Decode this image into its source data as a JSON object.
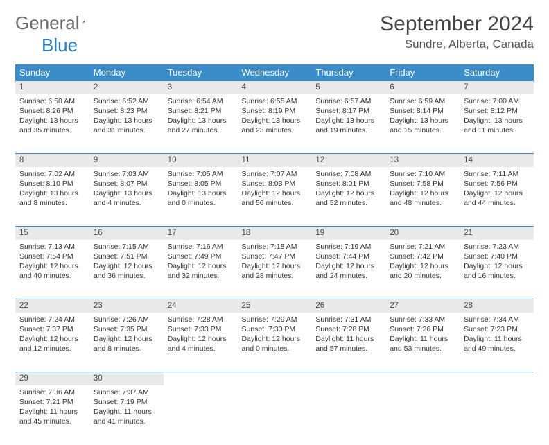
{
  "logo": {
    "part1": "General",
    "part2": "Blue"
  },
  "title": "September 2024",
  "location": "Sundre, Alberta, Canada",
  "colors": {
    "header_bg": "#3b8dc9",
    "daynum_bg": "#e9e9e9",
    "border": "#3b8dc9",
    "text": "#333333",
    "title_text": "#444444",
    "logo_gray": "#6a6a6a",
    "logo_blue": "#2a7ec0",
    "background": "#ffffff"
  },
  "typography": {
    "title_fontsize": 30,
    "location_fontsize": 17,
    "header_fontsize": 13,
    "daynum_fontsize": 11.5,
    "body_fontsize": 10.5,
    "font_family": "Arial"
  },
  "day_headers": [
    "Sunday",
    "Monday",
    "Tuesday",
    "Wednesday",
    "Thursday",
    "Friday",
    "Saturday"
  ],
  "weeks": [
    [
      {
        "n": "1",
        "sr": "6:50 AM",
        "ss": "8:26 PM",
        "dl": "13 hours and 35 minutes"
      },
      {
        "n": "2",
        "sr": "6:52 AM",
        "ss": "8:23 PM",
        "dl": "13 hours and 31 minutes"
      },
      {
        "n": "3",
        "sr": "6:54 AM",
        "ss": "8:21 PM",
        "dl": "13 hours and 27 minutes"
      },
      {
        "n": "4",
        "sr": "6:55 AM",
        "ss": "8:19 PM",
        "dl": "13 hours and 23 minutes"
      },
      {
        "n": "5",
        "sr": "6:57 AM",
        "ss": "8:17 PM",
        "dl": "13 hours and 19 minutes"
      },
      {
        "n": "6",
        "sr": "6:59 AM",
        "ss": "8:14 PM",
        "dl": "13 hours and 15 minutes"
      },
      {
        "n": "7",
        "sr": "7:00 AM",
        "ss": "8:12 PM",
        "dl": "13 hours and 11 minutes"
      }
    ],
    [
      {
        "n": "8",
        "sr": "7:02 AM",
        "ss": "8:10 PM",
        "dl": "13 hours and 8 minutes"
      },
      {
        "n": "9",
        "sr": "7:03 AM",
        "ss": "8:07 PM",
        "dl": "13 hours and 4 minutes"
      },
      {
        "n": "10",
        "sr": "7:05 AM",
        "ss": "8:05 PM",
        "dl": "13 hours and 0 minutes"
      },
      {
        "n": "11",
        "sr": "7:07 AM",
        "ss": "8:03 PM",
        "dl": "12 hours and 56 minutes"
      },
      {
        "n": "12",
        "sr": "7:08 AM",
        "ss": "8:01 PM",
        "dl": "12 hours and 52 minutes"
      },
      {
        "n": "13",
        "sr": "7:10 AM",
        "ss": "7:58 PM",
        "dl": "12 hours and 48 minutes"
      },
      {
        "n": "14",
        "sr": "7:11 AM",
        "ss": "7:56 PM",
        "dl": "12 hours and 44 minutes"
      }
    ],
    [
      {
        "n": "15",
        "sr": "7:13 AM",
        "ss": "7:54 PM",
        "dl": "12 hours and 40 minutes"
      },
      {
        "n": "16",
        "sr": "7:15 AM",
        "ss": "7:51 PM",
        "dl": "12 hours and 36 minutes"
      },
      {
        "n": "17",
        "sr": "7:16 AM",
        "ss": "7:49 PM",
        "dl": "12 hours and 32 minutes"
      },
      {
        "n": "18",
        "sr": "7:18 AM",
        "ss": "7:47 PM",
        "dl": "12 hours and 28 minutes"
      },
      {
        "n": "19",
        "sr": "7:19 AM",
        "ss": "7:44 PM",
        "dl": "12 hours and 24 minutes"
      },
      {
        "n": "20",
        "sr": "7:21 AM",
        "ss": "7:42 PM",
        "dl": "12 hours and 20 minutes"
      },
      {
        "n": "21",
        "sr": "7:23 AM",
        "ss": "7:40 PM",
        "dl": "12 hours and 16 minutes"
      }
    ],
    [
      {
        "n": "22",
        "sr": "7:24 AM",
        "ss": "7:37 PM",
        "dl": "12 hours and 12 minutes"
      },
      {
        "n": "23",
        "sr": "7:26 AM",
        "ss": "7:35 PM",
        "dl": "12 hours and 8 minutes"
      },
      {
        "n": "24",
        "sr": "7:28 AM",
        "ss": "7:33 PM",
        "dl": "12 hours and 4 minutes"
      },
      {
        "n": "25",
        "sr": "7:29 AM",
        "ss": "7:30 PM",
        "dl": "12 hours and 0 minutes"
      },
      {
        "n": "26",
        "sr": "7:31 AM",
        "ss": "7:28 PM",
        "dl": "11 hours and 57 minutes"
      },
      {
        "n": "27",
        "sr": "7:33 AM",
        "ss": "7:26 PM",
        "dl": "11 hours and 53 minutes"
      },
      {
        "n": "28",
        "sr": "7:34 AM",
        "ss": "7:23 PM",
        "dl": "11 hours and 49 minutes"
      }
    ],
    [
      {
        "n": "29",
        "sr": "7:36 AM",
        "ss": "7:21 PM",
        "dl": "11 hours and 45 minutes"
      },
      {
        "n": "30",
        "sr": "7:37 AM",
        "ss": "7:19 PM",
        "dl": "11 hours and 41 minutes"
      },
      null,
      null,
      null,
      null,
      null
    ]
  ],
  "labels": {
    "sunrise": "Sunrise:",
    "sunset": "Sunset:",
    "daylight": "Daylight:"
  }
}
